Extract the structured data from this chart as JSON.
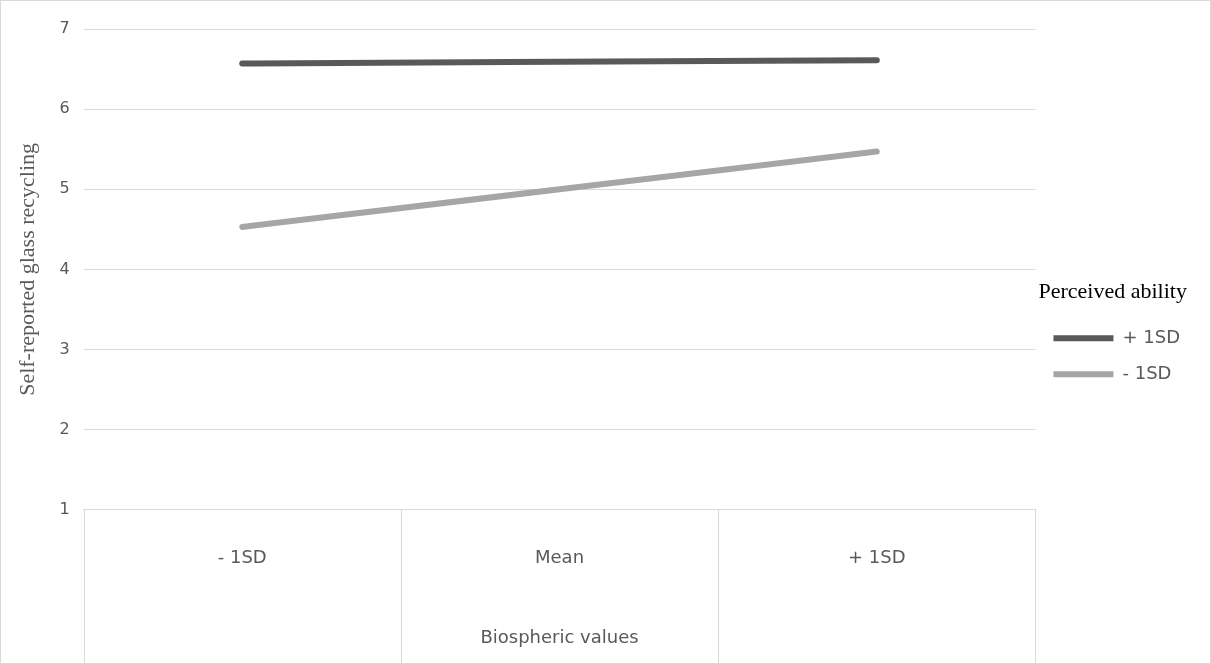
{
  "chart_data": {
    "type": "line",
    "xlabel": "Biospheric values",
    "ylabel": "Self-reported glass recycling",
    "legend_title": "Perceived ability",
    "categories": [
      "- 1SD",
      "Mean",
      "+ 1SD"
    ],
    "series": [
      {
        "name": "+ 1SD",
        "color": "#595959",
        "values": [
          6.57,
          6.59,
          6.61
        ]
      },
      {
        "name": "- 1SD",
        "color": "#a6a6a6",
        "values": [
          4.53,
          5.0,
          5.47
        ]
      }
    ],
    "ylim": [
      1,
      7
    ],
    "yticks": [
      1,
      2,
      3,
      4,
      5,
      6,
      7
    ],
    "grid": "y",
    "legend": "right",
    "marker": "none",
    "line_style": "solid"
  }
}
